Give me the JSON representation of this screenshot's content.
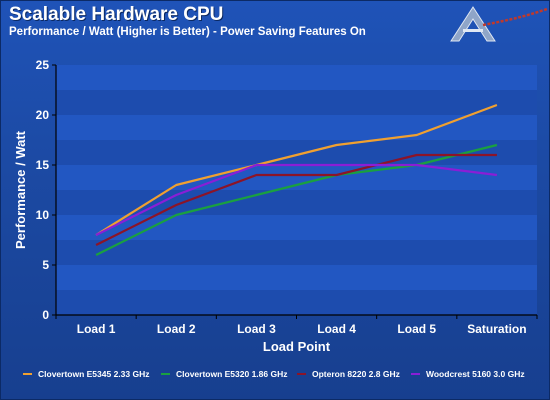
{
  "header": {
    "title": "Scalable Hardware CPU",
    "subtitle": "Performance / Watt (Higher is Better) - Power Saving Features On"
  },
  "chart_data": {
    "type": "line",
    "title": "Scalable Hardware CPU",
    "subtitle": "Performance / Watt (Higher is Better) - Power Saving Features On",
    "xlabel": "Load Point",
    "ylabel": "Performance / Watt",
    "categories": [
      "Load 1",
      "Load 2",
      "Load 3",
      "Load 4",
      "Load 5",
      "Saturation"
    ],
    "ylim": [
      0,
      25
    ],
    "yticks": [
      0,
      5,
      10,
      15,
      20,
      25
    ],
    "grid": "horizontal bands",
    "legend_position": "bottom",
    "series": [
      {
        "name": "Clovertown E5345 2.33 GHz",
        "color": "#f0a030",
        "values": [
          8,
          13,
          15,
          17,
          18,
          21
        ]
      },
      {
        "name": "Clovertown E5320 1.86 GHz",
        "color": "#1aa040",
        "values": [
          6,
          10,
          12,
          14,
          15,
          17
        ]
      },
      {
        "name": "Opteron 8220 2.8 GHz",
        "color": "#8c1428",
        "values": [
          7,
          11,
          14,
          14,
          16,
          16
        ]
      },
      {
        "name": "Woodcrest 5160 3.0 GHz",
        "color": "#8a1ed6",
        "values": [
          8,
          12,
          15,
          15,
          15,
          14
        ]
      }
    ]
  }
}
